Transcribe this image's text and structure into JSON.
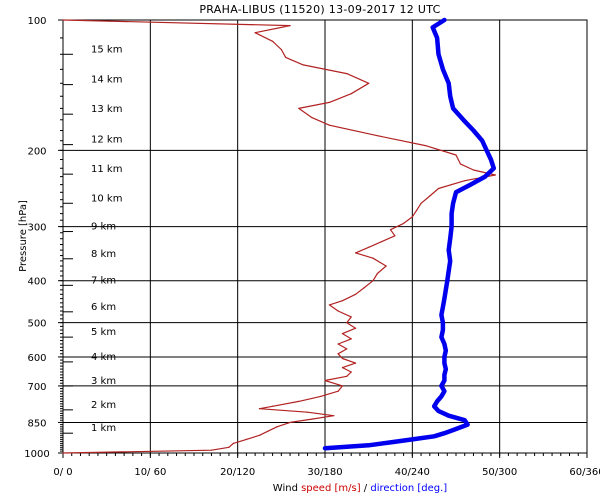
{
  "chart_data": {
    "type": "line",
    "title": "PRAHA-LIBUS (11520)    13-09-2017  12  UTC",
    "ylabel": "Pressure [hPa]",
    "xlabel_parts": [
      {
        "text": "Wind",
        "color": "#000000"
      },
      {
        "text": "speed",
        "color": "#cc0000"
      },
      {
        "text": "[m/s]",
        "color": "#cc0000"
      },
      {
        "text": "/",
        "color": "#000000"
      },
      {
        "text": "direction",
        "color": "#0000ff"
      },
      {
        "text": "[deg.]",
        "color": "#0000ff"
      }
    ],
    "y_scale": "log",
    "ylim": [
      1000,
      100
    ],
    "y_tick_labels": [
      "100",
      "200",
      "300",
      "400",
      "500",
      "600",
      "700",
      "850",
      "1000"
    ],
    "x_tick_labels": [
      "0/  0",
      "10/ 60",
      "20/120",
      "30/180",
      "40/240",
      "50/300",
      "60/360"
    ],
    "speed_range": [
      0,
      60
    ],
    "direction_range": [
      0,
      360
    ],
    "height_labels": [
      {
        "text": "1 km",
        "p": 900
      },
      {
        "text": "2 km",
        "p": 795
      },
      {
        "text": "3 km",
        "p": 700
      },
      {
        "text": "4 km",
        "p": 616
      },
      {
        "text": "5 km",
        "p": 540
      },
      {
        "text": "6 km",
        "p": 472
      },
      {
        "text": "7 km",
        "p": 410
      },
      {
        "text": "8 km",
        "p": 356
      },
      {
        "text": "9 km",
        "p": 308
      },
      {
        "text": "10 km",
        "p": 265
      },
      {
        "text": "11 km",
        "p": 227
      },
      {
        "text": "12 km",
        "p": 194
      },
      {
        "text": "13 km",
        "p": 165
      },
      {
        "text": "14 km",
        "p": 141
      },
      {
        "text": "15 km",
        "p": 120
      }
    ],
    "series": [
      {
        "name": "speed",
        "color": "#b22222",
        "points": [
          [
            1000,
            0.0
          ],
          [
            985,
            17.0
          ],
          [
            970,
            19.0
          ],
          [
            950,
            19.5
          ],
          [
            930,
            21.0
          ],
          [
            910,
            22.5
          ],
          [
            890,
            23.5
          ],
          [
            870,
            24.5
          ],
          [
            850,
            26.0
          ],
          [
            835,
            28.5
          ],
          [
            820,
            31.0
          ],
          [
            805,
            28.0
          ],
          [
            790,
            22.5
          ],
          [
            780,
            24.0
          ],
          [
            760,
            27.0
          ],
          [
            740,
            29.5
          ],
          [
            720,
            31.5
          ],
          [
            700,
            32.0
          ],
          [
            680,
            30.0
          ],
          [
            665,
            32.5
          ],
          [
            650,
            33.0
          ],
          [
            635,
            32.0
          ],
          [
            620,
            33.5
          ],
          [
            605,
            32.0
          ],
          [
            590,
            31.5
          ],
          [
            575,
            32.5
          ],
          [
            560,
            31.5
          ],
          [
            545,
            33.0
          ],
          [
            530,
            32.0
          ],
          [
            515,
            33.5
          ],
          [
            500,
            32.5
          ],
          [
            485,
            33.0
          ],
          [
            470,
            31.5
          ],
          [
            455,
            30.5
          ],
          [
            445,
            32.0
          ],
          [
            430,
            33.5
          ],
          [
            415,
            34.5
          ],
          [
            400,
            35.5
          ],
          [
            385,
            36.0
          ],
          [
            370,
            37.0
          ],
          [
            355,
            35.5
          ],
          [
            345,
            33.5
          ],
          [
            335,
            35.0
          ],
          [
            325,
            36.5
          ],
          [
            315,
            38.0
          ],
          [
            305,
            37.5
          ],
          [
            295,
            39.0
          ],
          [
            285,
            40.0
          ],
          [
            275,
            40.5
          ],
          [
            265,
            41.0
          ],
          [
            255,
            42.0
          ],
          [
            245,
            43.0
          ],
          [
            235,
            46.0
          ],
          [
            228,
            49.5
          ],
          [
            222,
            47.0
          ],
          [
            215,
            45.5
          ],
          [
            205,
            45.0
          ],
          [
            195,
            41.5
          ],
          [
            185,
            36.0
          ],
          [
            175,
            30.5
          ],
          [
            168,
            28.5
          ],
          [
            160,
            27.0
          ],
          [
            155,
            30.5
          ],
          [
            148,
            33.0
          ],
          [
            140,
            35.0
          ],
          [
            133,
            32.5
          ],
          [
            127,
            27.5
          ],
          [
            122,
            25.5
          ],
          [
            117,
            25.0
          ],
          [
            112,
            24.0
          ],
          [
            107,
            22.0
          ],
          [
            103,
            26.0
          ],
          [
            100,
            0.0
          ]
        ]
      },
      {
        "name": "direction",
        "color": "#0000ee",
        "points": [
          [
            975,
            180
          ],
          [
            960,
            210
          ],
          [
            945,
            225
          ],
          [
            930,
            240
          ],
          [
            915,
            255
          ],
          [
            900,
            262
          ],
          [
            880,
            270
          ],
          [
            860,
            278
          ],
          [
            840,
            276
          ],
          [
            820,
            265
          ],
          [
            800,
            258
          ],
          [
            780,
            255
          ],
          [
            760,
            257
          ],
          [
            740,
            260
          ],
          [
            720,
            262
          ],
          [
            700,
            260
          ],
          [
            680,
            262
          ],
          [
            660,
            262
          ],
          [
            640,
            263
          ],
          [
            620,
            262
          ],
          [
            600,
            262
          ],
          [
            580,
            263
          ],
          [
            560,
            262
          ],
          [
            540,
            260
          ],
          [
            520,
            261
          ],
          [
            500,
            261
          ],
          [
            480,
            260
          ],
          [
            460,
            261
          ],
          [
            440,
            262
          ],
          [
            420,
            263
          ],
          [
            400,
            264
          ],
          [
            380,
            265
          ],
          [
            360,
            266
          ],
          [
            340,
            265
          ],
          [
            320,
            266
          ],
          [
            300,
            267
          ],
          [
            280,
            267
          ],
          [
            265,
            268
          ],
          [
            250,
            270
          ],
          [
            240,
            280
          ],
          [
            230,
            290
          ],
          [
            220,
            296
          ],
          [
            210,
            294
          ],
          [
            200,
            291
          ],
          [
            190,
            288
          ],
          [
            180,
            282
          ],
          [
            170,
            275
          ],
          [
            160,
            268
          ],
          [
            150,
            266
          ],
          [
            140,
            265
          ],
          [
            130,
            261
          ],
          [
            120,
            258
          ],
          [
            110,
            257
          ],
          [
            104,
            254
          ],
          [
            100,
            262
          ]
        ]
      }
    ]
  }
}
